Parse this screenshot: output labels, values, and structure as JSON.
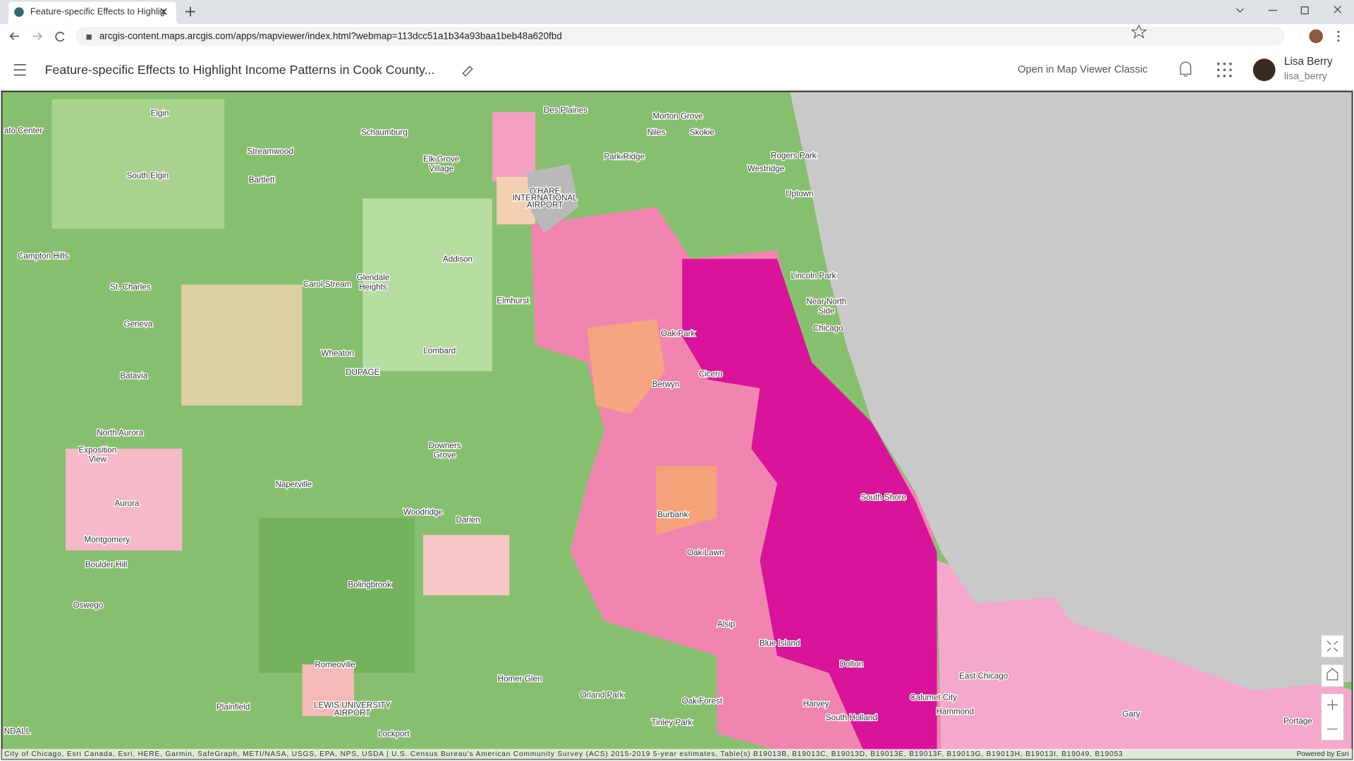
{
  "browser": {
    "tab_title": "Feature-specific Effects to Highlig",
    "url": "arcgis-content.maps.arcgis.com/apps/mapviewer/index.html?webmap=113dcc51a1b34a93baa1beb48a620fbd"
  },
  "header": {
    "title": "Feature-specific Effects to Highlight Income Patterns in Cook County...",
    "classic_link": "Open in Map Viewer Classic",
    "user_name": "Lisa Berry",
    "user_id": "lisa_berry"
  },
  "map": {
    "labels": [
      "Elgin",
      "ato Center",
      "Schaumburg",
      "Des Plaines",
      "Morton Grove",
      "Niles",
      "Skokie",
      "Streamwood",
      "Elk Grove",
      "Village",
      "Park Ridge",
      "Rogers Park",
      "South Elgin",
      "Bartlett",
      "Westridge",
      "O'HARE",
      "INTERNATIONAL",
      "AIRPORT",
      "Uptown",
      "Campton Hills",
      "Addison",
      "Lincoln Park",
      "Carol Stream",
      "Glendale",
      "Heights",
      "St. Charles",
      "Elmhurst",
      "Near North",
      "Side",
      "Geneva",
      "Chicago",
      "Oak Park",
      "Wheaton",
      "Lombard",
      "DUPAGE",
      "Cicero",
      "Batavia",
      "Berwyn",
      "North Aurora",
      "Exposition",
      "View",
      "Downers",
      "Grove",
      "Naperville",
      "South Shore",
      "Aurora",
      "Woodridge",
      "Darien",
      "Burbank",
      "Montgomery",
      "Oak Lawn",
      "Boulder Hill",
      "Bolingbrook",
      "Oswego",
      "Alsip",
      "Blue Island",
      "Dolton",
      "Romeoville",
      "East Chicago",
      "Homer Glen",
      "Orland Park",
      "Calumet City",
      "Oak Forest",
      "Harvey",
      "LEWIS UNIVERSITY",
      "AIRPORT",
      "Plainfield",
      "Hammond",
      "Gary",
      "South Holland",
      "Tinley Park",
      "Portage",
      "Lockport",
      "NDALL"
    ],
    "attribution": "City of Chicago, Esri Canada, Esri, HERE, Garmin, SafeGraph, METI/NASA, USGS, EPA, NPS, USDA | U.S. Census Bureau's American Community Survey (ACS) 2015-2019 5-year estimates, Table(s) B19013B, B19013C, B19013D, B19013E, B19013F, B19013G, B19013H, B19013I, B19049, B19053",
    "powered_by": "Powered by Esri"
  }
}
